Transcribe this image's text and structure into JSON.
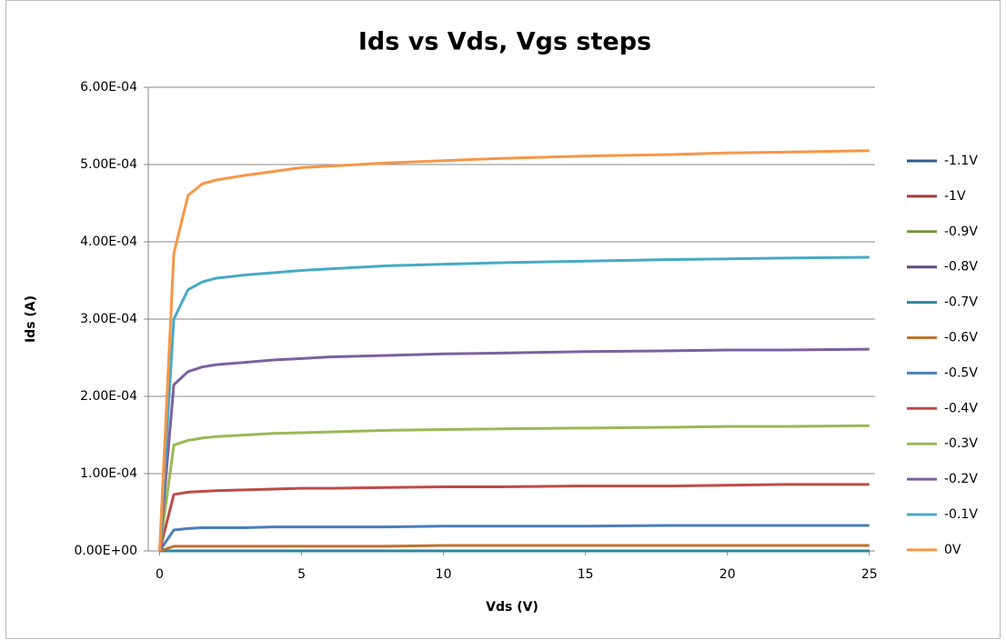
{
  "chart_data": {
    "type": "line",
    "title": "Ids vs Vds, Vgs steps",
    "xlabel": "Vds (V)",
    "ylabel": "Ids (A)",
    "x": [
      0,
      0.5,
      1,
      1.5,
      2,
      3,
      4,
      5,
      6,
      8,
      10,
      12,
      15,
      18,
      20,
      22,
      25
    ],
    "xlim": [
      -0.4,
      25.2
    ],
    "xticks": [
      0,
      5,
      10,
      15,
      20,
      25
    ],
    "ylim": [
      0,
      0.0006
    ],
    "yticks": [
      {
        "value": 0,
        "label": "0.00E+00"
      },
      {
        "value": 0.0001,
        "label": "1.00E-04"
      },
      {
        "value": 0.0002,
        "label": "2.00E-04"
      },
      {
        "value": 0.0003,
        "label": "3.00E-04"
      },
      {
        "value": 0.0004,
        "label": "4.00E-04"
      },
      {
        "value": 0.0005,
        "label": "5.00E-04"
      },
      {
        "value": 0.0006,
        "label": "6.00E-04"
      }
    ],
    "grid": true,
    "legend": "right",
    "series": [
      {
        "name": "-1.1V",
        "color": "#2c5d8a",
        "values": [
          0,
          0,
          0,
          0,
          0,
          0,
          0,
          0,
          0,
          0,
          0,
          0,
          0,
          0,
          0,
          0,
          0
        ]
      },
      {
        "name": "-1V",
        "color": "#a03c3a",
        "values": [
          0,
          0,
          0,
          0,
          0,
          0,
          0,
          0,
          0,
          0,
          0,
          0,
          0,
          0,
          0,
          0,
          0
        ]
      },
      {
        "name": "-0.9V",
        "color": "#77933c",
        "values": [
          0,
          0,
          0,
          0,
          0,
          0,
          0,
          0,
          0,
          0,
          0,
          0,
          0,
          0,
          0,
          0,
          0
        ]
      },
      {
        "name": "-0.8V",
        "color": "#604a7b",
        "values": [
          0,
          0,
          0,
          0,
          0,
          0,
          0,
          0,
          0,
          0,
          0,
          0,
          0,
          0,
          0,
          0,
          0
        ]
      },
      {
        "name": "-0.7V",
        "color": "#31859c",
        "values": [
          0,
          0,
          0,
          0,
          0,
          0,
          0,
          0,
          0,
          0,
          0,
          0,
          0,
          0,
          0,
          0,
          0
        ]
      },
      {
        "name": "-0.6V",
        "color": "#c0722e",
        "values": [
          0,
          6e-06,
          6e-06,
          6e-06,
          6e-06,
          6e-06,
          6e-06,
          6e-06,
          6e-06,
          6e-06,
          7e-06,
          7e-06,
          7e-06,
          7e-06,
          7e-06,
          7e-06,
          7e-06
        ]
      },
      {
        "name": "-0.5V",
        "color": "#4a7ebb",
        "values": [
          0,
          2.7e-05,
          2.9e-05,
          3e-05,
          3e-05,
          3e-05,
          3.1e-05,
          3.1e-05,
          3.1e-05,
          3.1e-05,
          3.2e-05,
          3.2e-05,
          3.2e-05,
          3.3e-05,
          3.3e-05,
          3.3e-05,
          3.3e-05
        ]
      },
      {
        "name": "-0.4V",
        "color": "#be4b48",
        "values": [
          0,
          7.3e-05,
          7.6e-05,
          7.7e-05,
          7.8e-05,
          7.9e-05,
          8e-05,
          8.1e-05,
          8.1e-05,
          8.2e-05,
          8.3e-05,
          8.3e-05,
          8.4e-05,
          8.4e-05,
          8.5e-05,
          8.6e-05,
          8.6e-05
        ]
      },
      {
        "name": "-0.3V",
        "color": "#98b954",
        "values": [
          0,
          0.000137,
          0.000143,
          0.000146,
          0.000148,
          0.00015,
          0.000152,
          0.000153,
          0.000154,
          0.000156,
          0.000157,
          0.000158,
          0.000159,
          0.00016,
          0.000161,
          0.000161,
          0.000162
        ]
      },
      {
        "name": "-0.2V",
        "color": "#7d60a0",
        "values": [
          0,
          0.000215,
          0.000232,
          0.000238,
          0.000241,
          0.000244,
          0.000247,
          0.000249,
          0.000251,
          0.000253,
          0.000255,
          0.000256,
          0.000258,
          0.000259,
          0.00026,
          0.00026,
          0.000261
        ]
      },
      {
        "name": "-0.1V",
        "color": "#46aac5",
        "values": [
          0,
          0.0003,
          0.000338,
          0.000348,
          0.000353,
          0.000357,
          0.00036,
          0.000363,
          0.000365,
          0.000369,
          0.000371,
          0.000373,
          0.000375,
          0.000377,
          0.000378,
          0.000379,
          0.00038
        ]
      },
      {
        "name": "0V",
        "color": "#f79646",
        "values": [
          0,
          0.000385,
          0.00046,
          0.000475,
          0.00048,
          0.000486,
          0.000491,
          0.000496,
          0.000498,
          0.000502,
          0.000505,
          0.000508,
          0.000511,
          0.000513,
          0.000515,
          0.000516,
          0.000518
        ]
      }
    ]
  }
}
